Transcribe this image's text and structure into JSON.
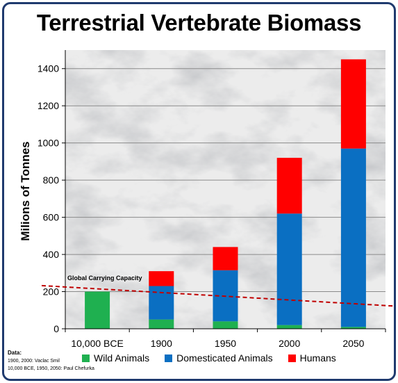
{
  "chart_data": {
    "type": "bar",
    "stacked": true,
    "title": "Terrestrial Vertebrate Biomass",
    "ylabel": "Milions of Tonnes",
    "xlabel": "",
    "ylim": [
      0,
      1500
    ],
    "yticks": [
      0,
      200,
      400,
      600,
      800,
      1000,
      1200,
      1400
    ],
    "grid": true,
    "categories": [
      "10,000 BCE",
      "1900",
      "1950",
      "2000",
      "2050"
    ],
    "series": [
      {
        "name": "Wild Animals",
        "color": "#1fb050",
        "values": [
          200,
          50,
          40,
          20,
          10
        ]
      },
      {
        "name": "Domesticated Animals",
        "color": "#0a6fc2",
        "values": [
          0,
          180,
          275,
          600,
          960
        ]
      },
      {
        "name": "Humans",
        "color": "#ff0000",
        "values": [
          0,
          80,
          125,
          300,
          480
        ]
      }
    ],
    "trendline": {
      "label": "Global Carrying Capacity",
      "color": "#c00000",
      "x_start": "10,000 BCE",
      "x_end": "2050",
      "y_start": 215,
      "y_end": 135
    },
    "legend_position": "bottom"
  },
  "sources": {
    "heading": "Data:",
    "line1": "1900, 2000: Vaclac Smil",
    "line2": "10,000 BCE, 1950, 2050: Paul Chefurka"
  },
  "colors": {
    "frame": "#1f3a6e",
    "plot_background": "#ececec"
  }
}
